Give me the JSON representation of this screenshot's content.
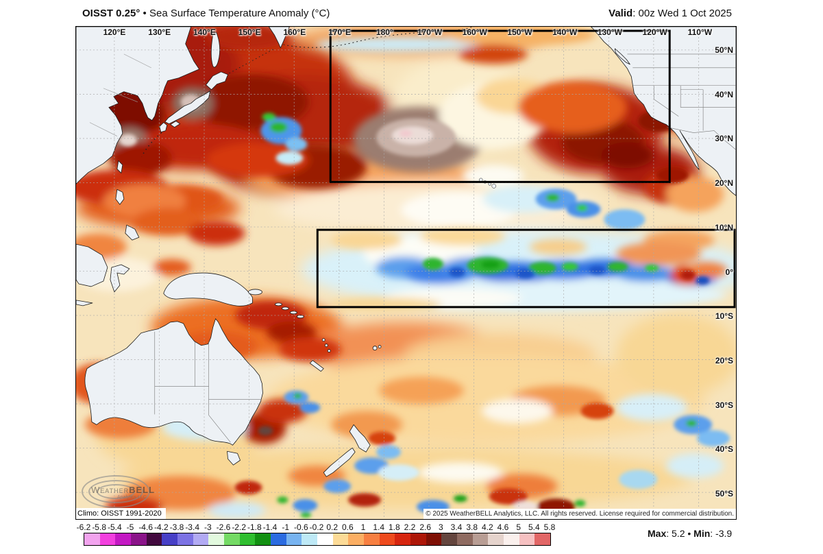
{
  "header": {
    "product": "OISST 0.25°",
    "mid": " • ",
    "title": "Sea Surface Temperature Anomaly (°C)",
    "valid_label": "Valid",
    "valid_rest": ": 00z Wed 1 Oct 2025"
  },
  "map": {
    "lon_labels": [
      "120°E",
      "130°E",
      "140°E",
      "150°E",
      "160°E",
      "170°E",
      "180°",
      "170°W",
      "160°W",
      "150°W",
      "140°W",
      "130°W",
      "120°W",
      "110°W"
    ],
    "lat_labels": [
      "50°N",
      "40°N",
      "30°N",
      "20°N",
      "10°N",
      "0°",
      "10°S",
      "20°S",
      "30°S",
      "40°S",
      "50°S"
    ],
    "climo": "Climo: OISST 1991-2020",
    "copyright": "© 2025 WeatherBELL Analytics, LLC. All rights reserved. License required for commercial distribution.",
    "logo": {
      "brand_left": "Weather",
      "brand_right": "BELL",
      "subtitle": "Analytics LLC"
    }
  },
  "colorbar": {
    "tick_labels": [
      "-6.2",
      "-5.8",
      "-5.4",
      "-5",
      "-4.6",
      "-4.2",
      "-3.8",
      "-3.4",
      "-3",
      "-2.6",
      "-2.2",
      "-1.8",
      "-1.4",
      "-1",
      "-0.6",
      "-0.2",
      "0.2",
      "0.6",
      "1",
      "1.4",
      "1.8",
      "2.2",
      "2.6",
      "3",
      "3.4",
      "3.8",
      "4.2",
      "4.6",
      "5",
      "5.4",
      "5.8"
    ],
    "segment_colors": [
      "#F2A3EE",
      "#F23FDE",
      "#C318C3",
      "#8A1389",
      "#42093E",
      "#473FC6",
      "#7C72E4",
      "#B2AAF3",
      "#E2F9DE",
      "#74DA64",
      "#2FBE2F",
      "#129012",
      "#2B6BE0",
      "#77B3F0",
      "#BEE9F6",
      "#FFFFFF",
      "#FCDB97",
      "#FBAE63",
      "#F77F41",
      "#EE4A1D",
      "#D6250F",
      "#AD1607",
      "#7E0F04",
      "#64453E",
      "#8F6B61",
      "#B89D94",
      "#E5D3CC",
      "#FAF0ED",
      "#F6C0C1",
      "#E26666"
    ]
  },
  "stats": {
    "max_label": "Max",
    "max_value": ": 5.2 ",
    "bullet": "• ",
    "min_label": "Min",
    "min_value": ": -3.9"
  }
}
